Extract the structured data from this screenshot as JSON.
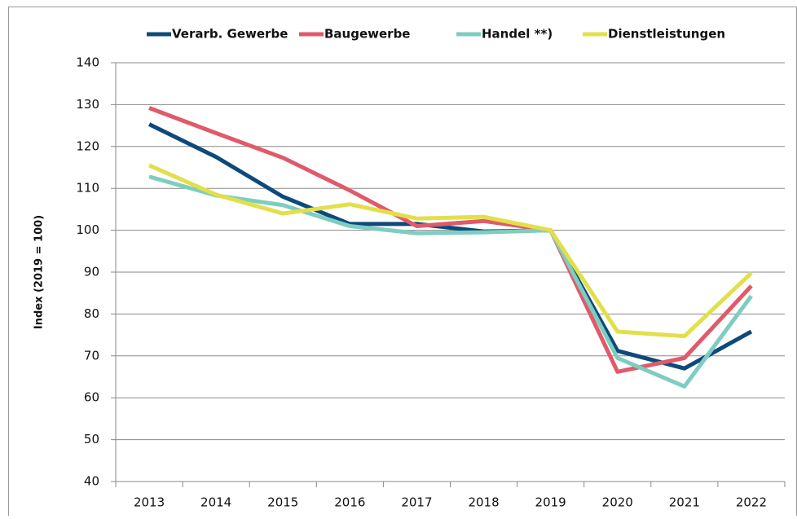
{
  "chart_data": {
    "type": "line",
    "y_label": "Index (2019 = 100)",
    "categories": [
      "2013",
      "2014",
      "2015",
      "2016",
      "2017",
      "2018",
      "2019",
      "2020",
      "2021",
      "2022"
    ],
    "series": [
      {
        "name": "Verarb. Gewerbe",
        "color": "#0d4a7a",
        "values": [
          125.3,
          117.5,
          108,
          101.5,
          101.5,
          99.7,
          100,
          71.2,
          67,
          75.8
        ]
      },
      {
        "name": "Baugewerbe",
        "color": "#e05a6a",
        "values": [
          129.2,
          123.2,
          117.3,
          109.5,
          101,
          102.2,
          100,
          66.2,
          69.5,
          86.7
        ]
      },
      {
        "name": "Handel **)",
        "color": "#7ecdc0",
        "values": [
          112.8,
          108.3,
          106,
          101,
          99.3,
          99.5,
          100,
          69.5,
          62.7,
          84.3
        ]
      },
      {
        "name": "Dienstleistungen",
        "color": "#e2e04a",
        "values": [
          115.5,
          108.5,
          104,
          106.2,
          102.8,
          103.2,
          100,
          75.8,
          74.7,
          89.8
        ]
      }
    ],
    "ylim": [
      40,
      140
    ],
    "yticks": [
      40,
      50,
      60,
      70,
      80,
      90,
      100,
      110,
      120,
      130,
      140
    ],
    "grid": true,
    "legend": "top"
  }
}
